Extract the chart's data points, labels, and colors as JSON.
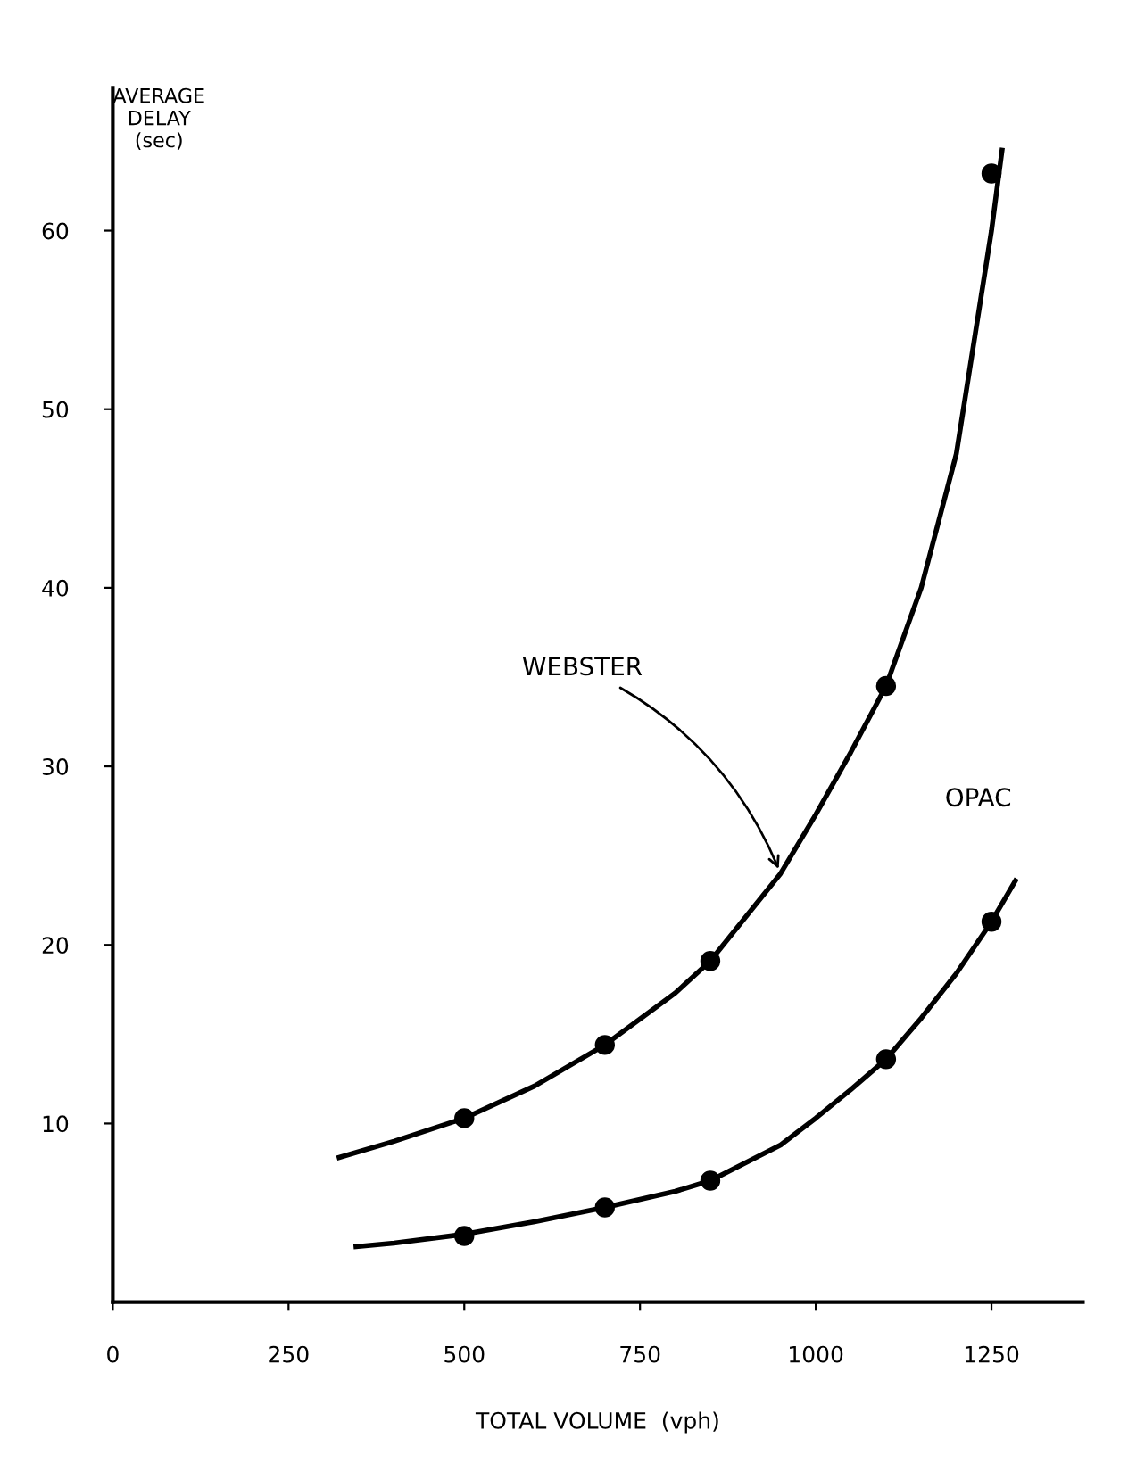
{
  "chart_data": {
    "type": "line",
    "xlabel": "TOTAL VOLUME  (vph)",
    "ylabel": "AVERAGE\nDELAY\n(sec)",
    "xlim": [
      0,
      1380
    ],
    "ylim": [
      0,
      68
    ],
    "xticks": [
      0,
      250,
      500,
      750,
      1000,
      1250
    ],
    "yticks": [
      10,
      20,
      30,
      40,
      50,
      60
    ],
    "grid": false,
    "legend": false,
    "series": [
      {
        "color": "#000000",
        "x": [
          322,
          400,
          500,
          600,
          700,
          800,
          850,
          950,
          1000,
          1050,
          1100,
          1150,
          1200,
          1250,
          1265
        ],
        "values": [
          8.1,
          9.0,
          10.3,
          12.1,
          14.4,
          17.3,
          19.1,
          24,
          27.3,
          30.8,
          34.5,
          40,
          47.5,
          60,
          64.5
        ]
      },
      {
        "color": "#000000",
        "x": [
          346,
          400,
          500,
          600,
          700,
          800,
          850,
          950,
          1000,
          1050,
          1100,
          1150,
          1200,
          1250,
          1284
        ],
        "values": [
          3.1,
          3.3,
          3.8,
          4.5,
          5.3,
          6.2,
          6.8,
          8.8,
          10.3,
          11.9,
          13.6,
          15.9,
          18.4,
          21.3,
          23.6
        ]
      },
      {
        "type": "scatter",
        "color": "#000000",
        "marker": "circle",
        "x": [
          500,
          700,
          850,
          1100,
          1250
        ],
        "values": [
          10.3,
          14.4,
          19.1,
          34.5,
          63.2
        ]
      },
      {
        "type": "scatter",
        "color": "#000000",
        "marker": "circle",
        "x": [
          500,
          700,
          850,
          1100,
          1250
        ],
        "values": [
          3.7,
          5.3,
          6.8,
          13.6,
          21.3
        ]
      }
    ],
    "annotations": [
      {
        "text": "WEBSTER",
        "x": 950,
        "y": 24
      },
      {
        "text": "OPAC",
        "x": 1284,
        "y": 23.6
      }
    ]
  }
}
